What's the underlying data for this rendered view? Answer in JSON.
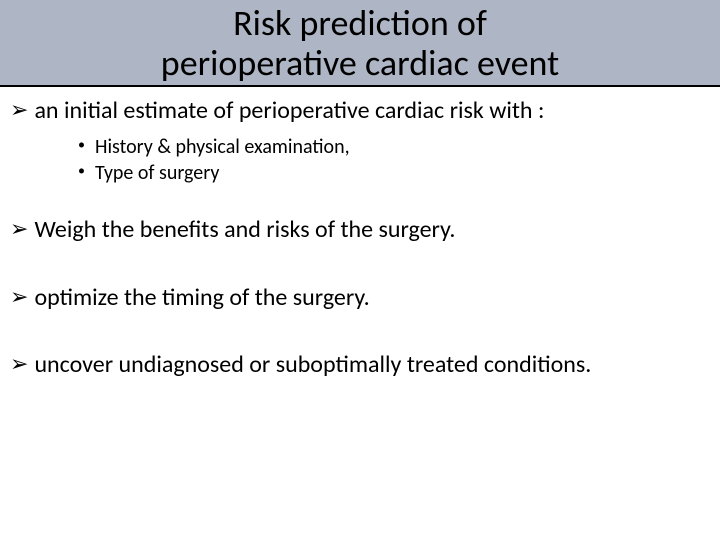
{
  "title": {
    "line1": "Risk prediction of",
    "line2": "perioperative cardiac event"
  },
  "bullets": {
    "b1": "an initial estimate of perioperative cardiac risk with :",
    "b1_sub1": "History & physical examination,",
    "b1_sub2": "Type of surgery",
    "b2": "Weigh the benefits and risks of the surgery.",
    "b3": " optimize the timing of the surgery.",
    "b4": "uncover undiagnosed or suboptimally treated conditions."
  },
  "style": {
    "title_bg": "#aeb5c4",
    "title_underline": "#000000",
    "text_color": "#000000",
    "background": "#ffffff",
    "title_fontsize": 36,
    "main_fontsize": 24,
    "sub_fontsize": 20
  }
}
